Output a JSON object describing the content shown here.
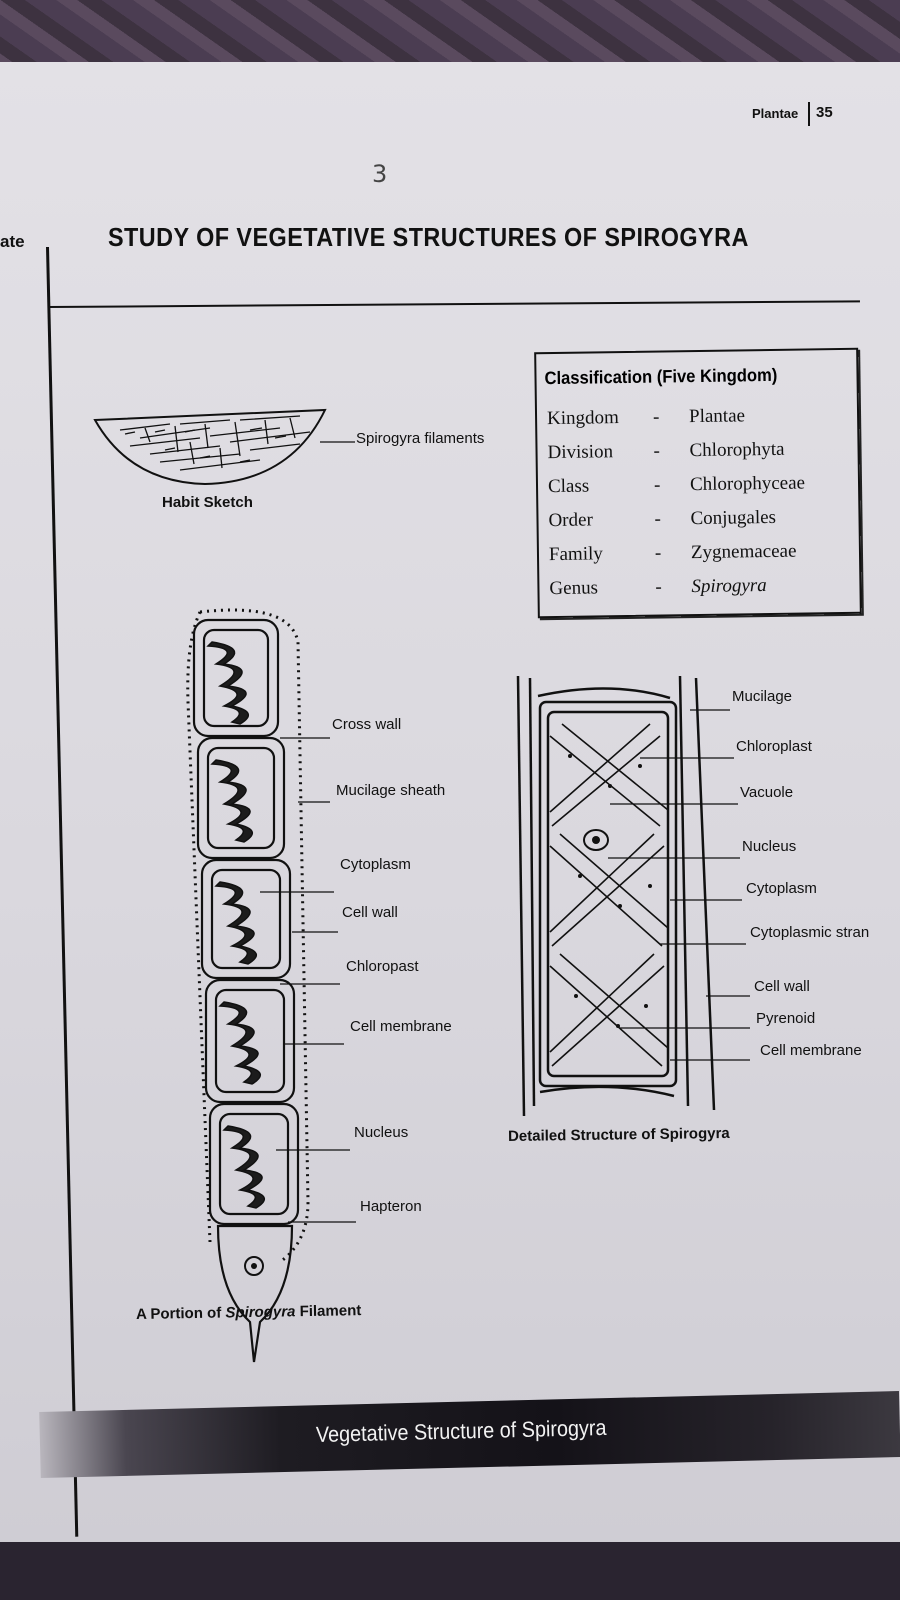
{
  "page": {
    "header_label": "Plantae",
    "page_number": "35",
    "handwritten_number": "3",
    "side_fragment": "ate",
    "title": "STUDY OF VEGETATIVE STRUCTURES OF SPIROGYRA"
  },
  "classification": {
    "title": "Classification (Five Kingdom)",
    "rows": [
      {
        "rank": "Kingdom",
        "dash": "-",
        "name": "Plantae"
      },
      {
        "rank": "Division",
        "dash": "-",
        "name": "Chlorophyta"
      },
      {
        "rank": "Class",
        "dash": "-",
        "name": "Chlorophyceae"
      },
      {
        "rank": "Order",
        "dash": "-",
        "name": "Conjugales"
      },
      {
        "rank": "Family",
        "dash": "-",
        "name": "Zygnemaceae"
      },
      {
        "rank": "Genus",
        "dash": "-",
        "name": "Spirogyra"
      }
    ]
  },
  "habit": {
    "label": "Spirogyra filaments",
    "caption": "Habit Sketch"
  },
  "filament": {
    "labels": {
      "cross_wall": "Cross wall",
      "mucilage_sheath": "Mucilage sheath",
      "cytoplasm": "Cytoplasm",
      "cell_wall": "Cell wall",
      "chloroplast": "Chloropast",
      "cell_membrane": "Cell membrane",
      "nucleus": "Nucleus",
      "hapteron": "Hapteron"
    },
    "caption_prefix": "A Portion of ",
    "caption_italic": "Spirogyra",
    "caption_suffix": " Filament"
  },
  "detail": {
    "labels": {
      "mucilage": "Mucilage",
      "chloroplast": "Chloroplast",
      "vacuole": "Vacuole",
      "nucleus": "Nucleus",
      "cytoplasm": "Cytoplasm",
      "cytoplasmic_strand": "Cytoplasmic stran",
      "cell_wall": "Cell wall",
      "pyrenoid": "Pyrenoid",
      "cell_membrane": "Cell membrane"
    },
    "caption": "Detailed Structure of Spirogyra"
  },
  "footer": {
    "text": "Vegetative Structure of Spirogyra"
  }
}
